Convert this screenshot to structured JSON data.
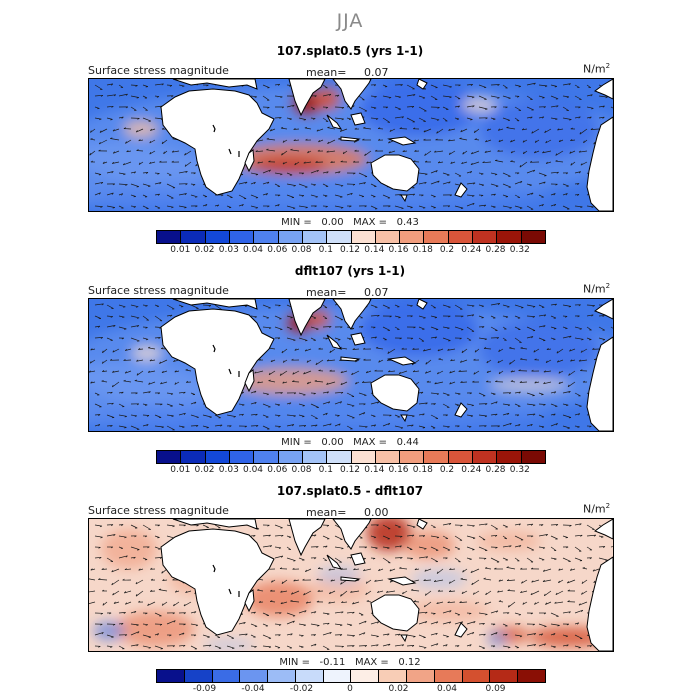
{
  "season": "JJA",
  "panels": [
    {
      "title": "107.splat0.5 (yrs 1-1)",
      "left_label": "Surface stress magnitude",
      "mean_label": "mean=",
      "mean_value": "0.07",
      "units_base": "N/m",
      "units_exp": "2",
      "min_label": "MIN =",
      "min_value": "0.00",
      "max_label": "MAX =",
      "max_value": "0.43",
      "colorbar": [
        "0.01",
        "0.02",
        "0.03",
        "0.04",
        "0.06",
        "0.08",
        "0.1",
        "0.12",
        "0.14",
        "0.16",
        "0.18",
        "0.2",
        "0.24",
        "0.28",
        "0.32"
      ]
    },
    {
      "title": "dflt107 (yrs 1-1)",
      "left_label": "Surface stress magnitude",
      "mean_label": "mean=",
      "mean_value": "0.07",
      "units_base": "N/m",
      "units_exp": "2",
      "min_label": "MIN =",
      "min_value": "0.00",
      "max_label": "MAX =",
      "max_value": "0.44",
      "colorbar": [
        "0.01",
        "0.02",
        "0.03",
        "0.04",
        "0.06",
        "0.08",
        "0.1",
        "0.12",
        "0.14",
        "0.16",
        "0.18",
        "0.2",
        "0.24",
        "0.28",
        "0.32"
      ]
    },
    {
      "title": "107.splat0.5 - dflt107",
      "left_label": "Surface stress magnitude",
      "mean_label": "mean=",
      "mean_value": "0.00",
      "units_base": "N/m",
      "units_exp": "2",
      "min_label": "MIN =",
      "min_value": "-0.11",
      "max_label": "MAX =",
      "max_value": "0.12",
      "colorbar": [
        "-0.09",
        "-0.04",
        "-0.02",
        "0",
        "0.02",
        "0.04",
        "0.09"
      ]
    }
  ],
  "colors": {
    "seq": [
      "#08108c",
      "#0b2bb8",
      "#1348d8",
      "#2f63e8",
      "#4f81ef",
      "#77a2f3",
      "#a3c3f7",
      "#cfe0fa",
      "#fbe0d2",
      "#f7c0a6",
      "#f19e7e",
      "#e87a58",
      "#d9553a",
      "#bf3221",
      "#9a1509",
      "#7a0a04"
    ],
    "div": [
      "#08108c",
      "#1642c8",
      "#3a6ce6",
      "#6b95f0",
      "#9cbcf6",
      "#c8dbfa",
      "#eef3fd",
      "#fdeee6",
      "#f8cdb6",
      "#f1a487",
      "#e77a59",
      "#d4502f",
      "#b52a17",
      "#8a0f05"
    ],
    "land": "#ffffff",
    "coast": "#000000",
    "arrow": "#1a1a1a"
  }
}
